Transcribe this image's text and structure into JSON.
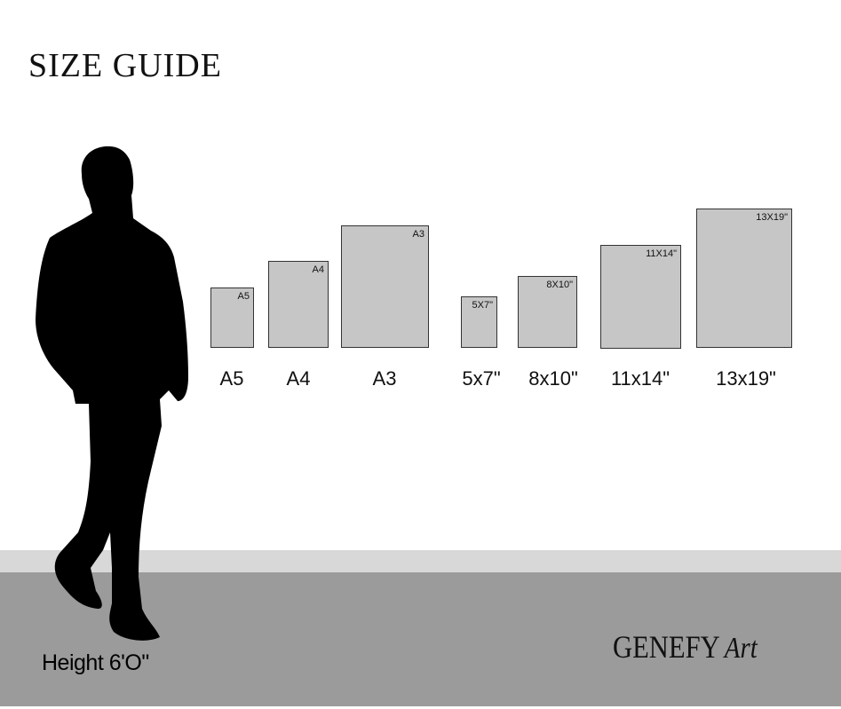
{
  "title": "SIZE GUIDE",
  "person": {
    "height_label": "Height 6'O\""
  },
  "frames": [
    {
      "tag": "A5",
      "label": "A5"
    },
    {
      "tag": "A4",
      "label": "A4"
    },
    {
      "tag": "A3",
      "label": "A3"
    },
    {
      "tag": "5X7\"",
      "label": "5x7\""
    },
    {
      "tag": "8X10\"",
      "label": "8x10\""
    },
    {
      "tag": "11X14\"",
      "label": "11x14\""
    },
    {
      "tag": "13X19\"",
      "label": "13x19\""
    }
  ],
  "logo": {
    "brand": "GENEFY",
    "script": "Art"
  },
  "colors": {
    "frame_fill": "#c6c6c6",
    "wall_band": "#d8d8d8",
    "floor": "#9b9b9b",
    "silhouette": "#000000"
  }
}
